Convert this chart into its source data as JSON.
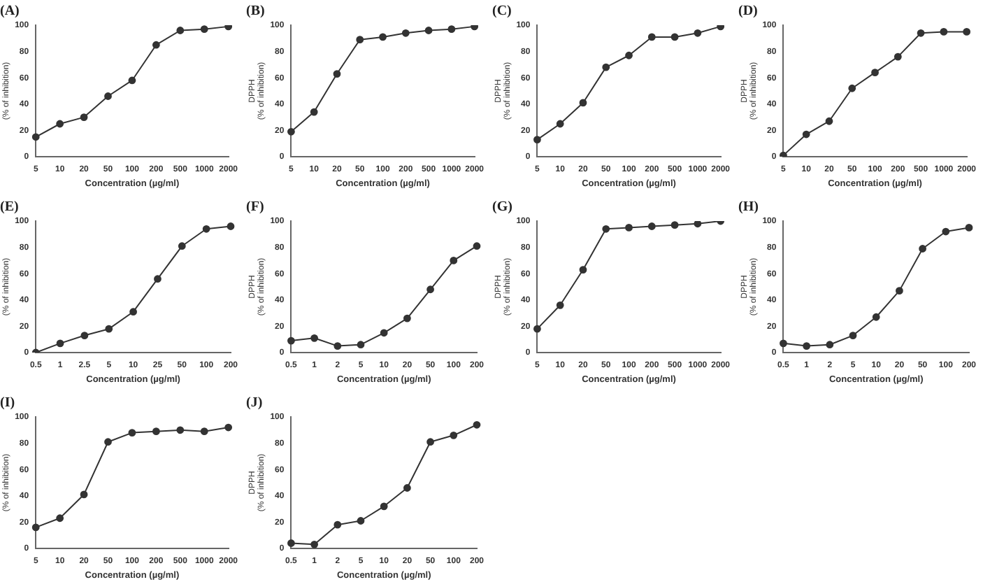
{
  "chart_data": [
    {
      "type": "line",
      "title": "(A)",
      "xlabel": "Concentration (µg/ml)",
      "ylabel": "(% of inhibition)",
      "categories": [
        "5",
        "10",
        "20",
        "50",
        "100",
        "200",
        "500",
        "1000",
        "2000"
      ],
      "values": [
        15,
        25,
        30,
        46,
        58,
        85,
        96,
        97,
        99
      ],
      "color": "#333333",
      "marker": "circle",
      "ylim": [
        0,
        100
      ],
      "yticks": [
        0,
        20,
        40,
        60,
        80,
        100
      ]
    },
    {
      "type": "line",
      "title": "(B)",
      "xlabel": "Concentration (µg/ml)",
      "ylabel": "DPPH\n(% of inhibition)",
      "categories": [
        "5",
        "10",
        "20",
        "50",
        "100",
        "200",
        "500",
        "1000",
        "2000"
      ],
      "values": [
        19,
        34,
        63,
        89,
        91,
        94,
        96,
        97,
        99
      ],
      "color": "#333333",
      "marker": "circle",
      "ylim": [
        0,
        100
      ],
      "yticks": [
        0,
        20,
        40,
        60,
        80,
        100
      ]
    },
    {
      "type": "line",
      "title": "(C)",
      "xlabel": "Concentration (µg/ml)",
      "ylabel": "DPPH\n(% of inhibition)",
      "categories": [
        "5",
        "10",
        "20",
        "50",
        "100",
        "200",
        "500",
        "1000",
        "2000"
      ],
      "values": [
        13,
        25,
        41,
        68,
        77,
        91,
        91,
        94,
        99
      ],
      "color": "#333333",
      "marker": "circle",
      "ylim": [
        0,
        100
      ],
      "yticks": [
        0,
        20,
        40,
        60,
        80,
        100
      ]
    },
    {
      "type": "line",
      "title": "(D)",
      "xlabel": "Concentration (µg/ml)",
      "ylabel": "DPPH\n(% of inhibition)",
      "categories": [
        "5",
        "10",
        "20",
        "50",
        "100",
        "200",
        "500",
        "1000",
        "2000"
      ],
      "values": [
        1,
        17,
        27,
        52,
        64,
        76,
        94,
        95,
        95
      ],
      "color": "#333333",
      "marker": "circle",
      "ylim": [
        0,
        100
      ],
      "yticks": [
        0,
        20,
        40,
        60,
        80,
        100
      ]
    },
    {
      "type": "line",
      "title": "(E)",
      "xlabel": "Concentration (µg/ml)",
      "ylabel": "(% of inhibition)",
      "categories": [
        "0.5",
        "1",
        "2.5",
        "5",
        "10",
        "25",
        "50",
        "100",
        "200"
      ],
      "values": [
        0,
        7,
        13,
        18,
        31,
        56,
        81,
        94,
        96
      ],
      "color": "#333333",
      "marker": "circle",
      "ylim": [
        0,
        100
      ],
      "yticks": [
        0,
        20,
        40,
        60,
        80,
        100
      ]
    },
    {
      "type": "line",
      "title": "(F)",
      "xlabel": "Concentration (µg/ml)",
      "ylabel": "DPPH\n(% of inhibition)",
      "categories": [
        "0.5",
        "1",
        "2",
        "5",
        "10",
        "20",
        "50",
        "100",
        "200"
      ],
      "values": [
        9,
        11,
        5,
        6,
        15,
        26,
        48,
        70,
        81
      ],
      "color": "#333333",
      "marker": "circle",
      "ylim": [
        0,
        100
      ],
      "yticks": [
        0,
        20,
        40,
        60,
        80,
        100
      ]
    },
    {
      "type": "line",
      "title": "(G)",
      "xlabel": "Concentration (µg/ml)",
      "ylabel": "DPPH\n(% of inhibition)",
      "categories": [
        "5",
        "10",
        "20",
        "50",
        "100",
        "200",
        "500",
        "1000",
        "2000"
      ],
      "values": [
        18,
        36,
        63,
        94,
        95,
        96,
        97,
        98,
        100
      ],
      "color": "#333333",
      "marker": "circle",
      "ylim": [
        0,
        100
      ],
      "yticks": [
        0,
        20,
        40,
        60,
        80,
        100
      ]
    },
    {
      "type": "line",
      "title": "(H)",
      "xlabel": "Concentration (µg/ml)",
      "ylabel": "DPPH\n(% of inhibition)",
      "categories": [
        "0.5",
        "1",
        "2",
        "5",
        "10",
        "20",
        "50",
        "100",
        "200"
      ],
      "values": [
        7,
        5,
        6,
        13,
        27,
        47,
        79,
        92,
        95
      ],
      "color": "#333333",
      "marker": "circle",
      "ylim": [
        0,
        100
      ],
      "yticks": [
        0,
        20,
        40,
        60,
        80,
        100
      ]
    },
    {
      "type": "line",
      "title": "(I)",
      "xlabel": "Concentration (µg/ml)",
      "ylabel": "(% of inhibition)",
      "categories": [
        "5",
        "10",
        "20",
        "50",
        "100",
        "200",
        "500",
        "1000",
        "2000"
      ],
      "values": [
        16,
        23,
        41,
        81,
        88,
        89,
        90,
        89,
        92
      ],
      "color": "#333333",
      "marker": "circle",
      "ylim": [
        0,
        100
      ],
      "yticks": [
        0,
        20,
        40,
        60,
        80,
        100
      ]
    },
    {
      "type": "line",
      "title": "(J)",
      "xlabel": "Concentration (µg/ml)",
      "ylabel": "DPPH\n(% of inhibition)",
      "categories": [
        "0.5",
        "1",
        "2",
        "5",
        "10",
        "20",
        "50",
        "100",
        "200"
      ],
      "values": [
        4,
        3,
        18,
        21,
        32,
        46,
        81,
        86,
        94
      ],
      "color": "#333333",
      "marker": "circle",
      "ylim": [
        0,
        100
      ],
      "yticks": [
        0,
        20,
        40,
        60,
        80,
        100
      ]
    }
  ]
}
